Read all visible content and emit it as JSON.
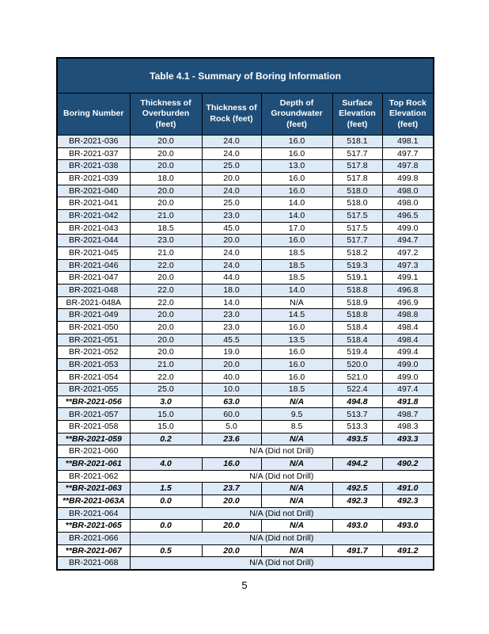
{
  "page": {
    "number": "5"
  },
  "table": {
    "title": "Table 4.1 - Summary of Boring Information",
    "columns": [
      "Boring Number",
      "Thickness of Overburden (feet)",
      "Thickness of Rock (feet)",
      "Depth of Groundwater (feet)",
      "Surface Elevation (feet)",
      "Top Rock Elevation (feet)"
    ],
    "colors": {
      "header_bg": "#1F4E79",
      "stripe_bg": "#DEEAF6",
      "border": "#000000"
    },
    "rows": [
      {
        "boring": "BR-2021-036",
        "overburden": "20.0",
        "rock": "24.0",
        "groundwater": "16.0",
        "surface": "518.1",
        "top_rock": "498.1",
        "emphasis": false
      },
      {
        "boring": "BR-2021-037",
        "overburden": "20.0",
        "rock": "24.0",
        "groundwater": "16.0",
        "surface": "517.7",
        "top_rock": "497.7",
        "emphasis": false
      },
      {
        "boring": "BR-2021-038",
        "overburden": "20.0",
        "rock": "25.0",
        "groundwater": "13.0",
        "surface": "517.8",
        "top_rock": "497.8",
        "emphasis": false
      },
      {
        "boring": "BR-2021-039",
        "overburden": "18.0",
        "rock": "20.0",
        "groundwater": "16.0",
        "surface": "517.8",
        "top_rock": "499.8",
        "emphasis": false
      },
      {
        "boring": "BR-2021-040",
        "overburden": "20.0",
        "rock": "24.0",
        "groundwater": "16.0",
        "surface": "518.0",
        "top_rock": "498.0",
        "emphasis": false
      },
      {
        "boring": "BR-2021-041",
        "overburden": "20.0",
        "rock": "25.0",
        "groundwater": "14.0",
        "surface": "518.0",
        "top_rock": "498.0",
        "emphasis": false
      },
      {
        "boring": "BR-2021-042",
        "overburden": "21.0",
        "rock": "23.0",
        "groundwater": "14.0",
        "surface": "517.5",
        "top_rock": "496.5",
        "emphasis": false
      },
      {
        "boring": "BR-2021-043",
        "overburden": "18.5",
        "rock": "45.0",
        "groundwater": "17.0",
        "surface": "517.5",
        "top_rock": "499.0",
        "emphasis": false
      },
      {
        "boring": "BR-2021-044",
        "overburden": "23.0",
        "rock": "20.0",
        "groundwater": "16.0",
        "surface": "517.7",
        "top_rock": "494.7",
        "emphasis": false
      },
      {
        "boring": "BR-2021-045",
        "overburden": "21.0",
        "rock": "24.0",
        "groundwater": "18.5",
        "surface": "518.2",
        "top_rock": "497.2",
        "emphasis": false
      },
      {
        "boring": "BR-2021-046",
        "overburden": "22.0",
        "rock": "24.0",
        "groundwater": "18.5",
        "surface": "519.3",
        "top_rock": "497.3",
        "emphasis": false
      },
      {
        "boring": "BR-2021-047",
        "overburden": "20.0",
        "rock": "44.0",
        "groundwater": "18.5",
        "surface": "519.1",
        "top_rock": "499.1",
        "emphasis": false
      },
      {
        "boring": "BR-2021-048",
        "overburden": "22.0",
        "rock": "18.0",
        "groundwater": "14.0",
        "surface": "518.8",
        "top_rock": "496.8",
        "emphasis": false
      },
      {
        "boring": "BR-2021-048A",
        "overburden": "22.0",
        "rock": "14.0",
        "groundwater": "N/A",
        "surface": "518.9",
        "top_rock": "496.9",
        "emphasis": false
      },
      {
        "boring": "BR-2021-049",
        "overburden": "20.0",
        "rock": "23.0",
        "groundwater": "14.5",
        "surface": "518.8",
        "top_rock": "498.8",
        "emphasis": false
      },
      {
        "boring": "BR-2021-050",
        "overburden": "20.0",
        "rock": "23.0",
        "groundwater": "16.0",
        "surface": "518.4",
        "top_rock": "498.4",
        "emphasis": false
      },
      {
        "boring": "BR-2021-051",
        "overburden": "20.0",
        "rock": "45.5",
        "groundwater": "13.5",
        "surface": "518.4",
        "top_rock": "498.4",
        "emphasis": false
      },
      {
        "boring": "BR-2021-052",
        "overburden": "20.0",
        "rock": "19.0",
        "groundwater": "16.0",
        "surface": "519.4",
        "top_rock": "499.4",
        "emphasis": false
      },
      {
        "boring": "BR-2021-053",
        "overburden": "21.0",
        "rock": "20.0",
        "groundwater": "16.0",
        "surface": "520.0",
        "top_rock": "499.0",
        "emphasis": false
      },
      {
        "boring": "BR-2021-054",
        "overburden": "22.0",
        "rock": "40.0",
        "groundwater": "16.0",
        "surface": "521.0",
        "top_rock": "499.0",
        "emphasis": false
      },
      {
        "boring": "BR-2021-055",
        "overburden": "25.0",
        "rock": "10.0",
        "groundwater": "18.5",
        "surface": "522.4",
        "top_rock": "497.4",
        "emphasis": false
      },
      {
        "boring": "**BR-2021-056",
        "overburden": "3.0",
        "rock": "63.0",
        "groundwater": "N/A",
        "surface": "494.8",
        "top_rock": "491.8",
        "emphasis": true
      },
      {
        "boring": "BR-2021-057",
        "overburden": "15.0",
        "rock": "60.0",
        "groundwater": "9.5",
        "surface": "513.7",
        "top_rock": "498.7",
        "emphasis": false
      },
      {
        "boring": "BR-2021-058",
        "overburden": "15.0",
        "rock": "5.0",
        "groundwater": "8.5",
        "surface": "513.3",
        "top_rock": "498.3",
        "emphasis": false
      },
      {
        "boring": "**BR-2021-059",
        "overburden": "0.2",
        "rock": "23.6",
        "groundwater": "N/A",
        "surface": "493.5",
        "top_rock": "493.3",
        "emphasis": true
      },
      {
        "boring": "BR-2021-060",
        "merged": "N/A (Did not Drill)",
        "emphasis": false
      },
      {
        "boring": "**BR-2021-061",
        "overburden": "4.0",
        "rock": "16.0",
        "groundwater": "N/A",
        "surface": "494.2",
        "top_rock": "490.2",
        "emphasis": true
      },
      {
        "boring": "BR-2021-062",
        "merged": "N/A (Did not Drill)",
        "emphasis": false
      },
      {
        "boring": "**BR-2021-063",
        "overburden": "1.5",
        "rock": "23.7",
        "groundwater": "N/A",
        "surface": "492.5",
        "top_rock": "491.0",
        "emphasis": true
      },
      {
        "boring": "**BR-2021-063A",
        "overburden": "0.0",
        "rock": "20.0",
        "groundwater": "N/A",
        "surface": "492.3",
        "top_rock": "492.3",
        "emphasis": true
      },
      {
        "boring": "BR-2021-064",
        "merged": "N/A (Did not Drill)",
        "emphasis": false
      },
      {
        "boring": "**BR-2021-065",
        "overburden": "0.0",
        "rock": "20.0",
        "groundwater": "N/A",
        "surface": "493.0",
        "top_rock": "493.0",
        "emphasis": true
      },
      {
        "boring": "BR-2021-066",
        "merged": "N/A (Did not Drill)",
        "emphasis": false
      },
      {
        "boring": "**BR-2021-067",
        "overburden": "0.5",
        "rock": "20.0",
        "groundwater": "N/A",
        "surface": "491.7",
        "top_rock": "491.2",
        "emphasis": true
      },
      {
        "boring": "BR-2021-068",
        "merged": "N/A (Did not Drill)",
        "emphasis": false
      }
    ]
  }
}
